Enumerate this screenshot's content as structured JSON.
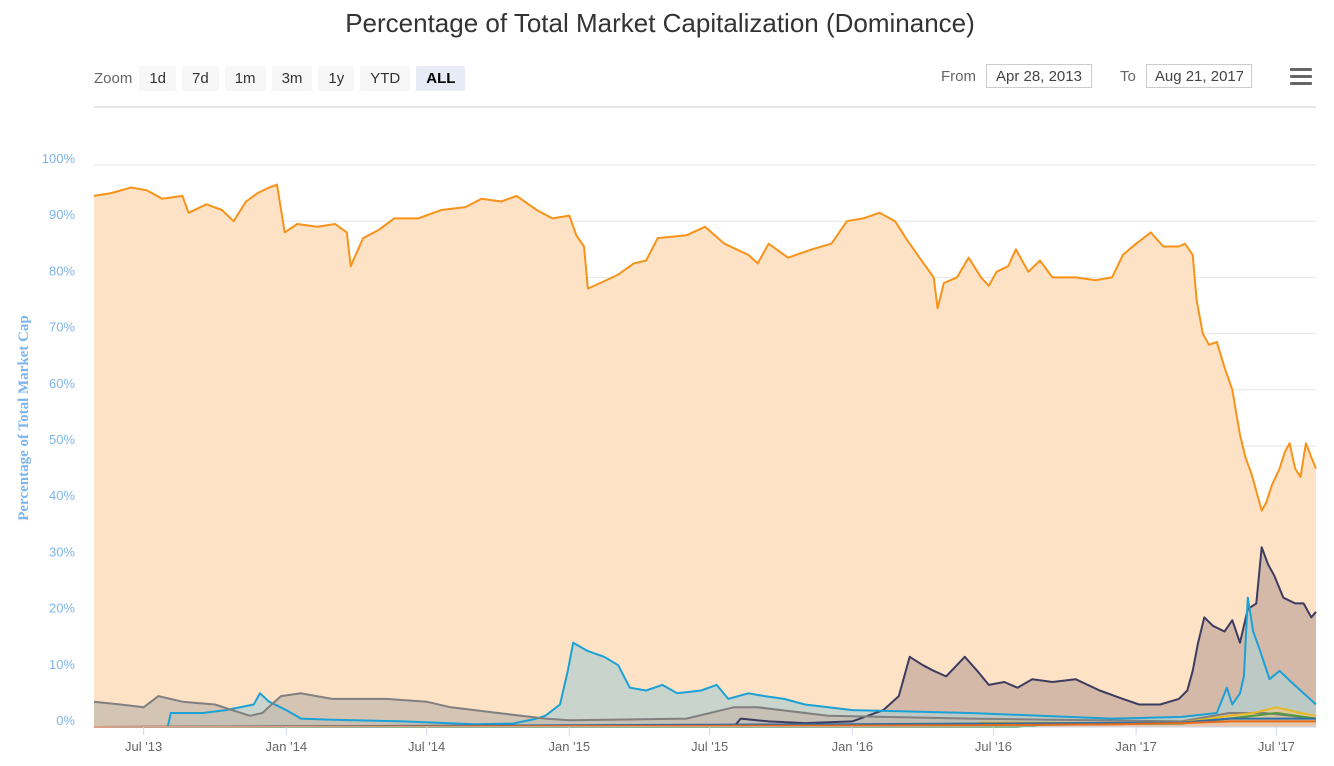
{
  "title": "Percentage of Total Market Capitalization (Dominance)",
  "zoom": {
    "label": "Zoom",
    "buttons": [
      "1d",
      "7d",
      "1m",
      "3m",
      "1y",
      "YTD",
      "ALL"
    ],
    "active": "ALL"
  },
  "range": {
    "from_label": "From",
    "from_value": "Apr 28, 2013",
    "to_label": "To",
    "to_value": "Aug 21, 2017"
  },
  "menu_icon": "hamburger-menu-icon",
  "chart_data": {
    "type": "area",
    "title": "Percentage of Total Market Capitalization (Dominance)",
    "ylabel": "Percentage of Total Market Cap",
    "xlabel": "",
    "ylim": [
      0,
      100
    ],
    "xlim": [
      "2013-04-28",
      "2017-08-21"
    ],
    "y_ticks": [
      "0%",
      "10%",
      "20%",
      "30%",
      "40%",
      "50%",
      "60%",
      "70%",
      "80%",
      "90%",
      "100%"
    ],
    "x_ticks": [
      {
        "label": "Jul '13",
        "date": "2013-07-01"
      },
      {
        "label": "Jan '14",
        "date": "2014-01-01"
      },
      {
        "label": "Jul '14",
        "date": "2014-07-01"
      },
      {
        "label": "Jan '15",
        "date": "2015-01-01"
      },
      {
        "label": "Jul '15",
        "date": "2015-07-01"
      },
      {
        "label": "Jan '16",
        "date": "2016-01-01"
      },
      {
        "label": "Jul '16",
        "date": "2016-07-01"
      },
      {
        "label": "Jan '17",
        "date": "2017-01-01"
      },
      {
        "label": "Jul '17",
        "date": "2017-07-01"
      }
    ],
    "grid": true,
    "series": [
      {
        "color": "#f7931a",
        "fill": "#fde2c6",
        "points": [
          [
            "2013-04-28",
            94.5
          ],
          [
            "2013-05-20",
            95
          ],
          [
            "2013-06-15",
            96
          ],
          [
            "2013-07-05",
            95.5
          ],
          [
            "2013-07-25",
            94
          ],
          [
            "2013-08-20",
            94.5
          ],
          [
            "2013-08-28",
            91.5
          ],
          [
            "2013-09-20",
            93
          ],
          [
            "2013-10-10",
            92
          ],
          [
            "2013-10-25",
            90
          ],
          [
            "2013-11-10",
            93.5
          ],
          [
            "2013-11-25",
            95
          ],
          [
            "2013-12-10",
            96
          ],
          [
            "2013-12-20",
            96.5
          ],
          [
            "2013-12-30",
            88
          ],
          [
            "2014-01-15",
            89.5
          ],
          [
            "2014-02-10",
            89
          ],
          [
            "2014-03-05",
            89.5
          ],
          [
            "2014-03-20",
            88
          ],
          [
            "2014-03-25",
            82
          ],
          [
            "2014-04-10",
            87
          ],
          [
            "2014-05-01",
            88.5
          ],
          [
            "2014-05-20",
            90.5
          ],
          [
            "2014-06-20",
            90.5
          ],
          [
            "2014-07-20",
            92
          ],
          [
            "2014-08-20",
            92.5
          ],
          [
            "2014-09-10",
            94
          ],
          [
            "2014-10-05",
            93.5
          ],
          [
            "2014-10-25",
            94.5
          ],
          [
            "2014-11-20",
            92
          ],
          [
            "2014-12-10",
            90.5
          ],
          [
            "2015-01-01",
            91
          ],
          [
            "2015-01-10",
            87.5
          ],
          [
            "2015-01-20",
            85.5
          ],
          [
            "2015-01-25",
            78
          ],
          [
            "2015-02-10",
            79
          ],
          [
            "2015-03-05",
            80.5
          ],
          [
            "2015-03-25",
            82.5
          ],
          [
            "2015-04-10",
            83
          ],
          [
            "2015-04-25",
            87
          ],
          [
            "2015-06-01",
            87.5
          ],
          [
            "2015-06-25",
            89
          ],
          [
            "2015-07-20",
            86
          ],
          [
            "2015-08-20",
            84
          ],
          [
            "2015-09-01",
            82.5
          ],
          [
            "2015-09-15",
            86
          ],
          [
            "2015-10-10",
            83.5
          ],
          [
            "2015-11-10",
            85
          ],
          [
            "2015-12-05",
            86
          ],
          [
            "2015-12-25",
            90
          ],
          [
            "2016-01-15",
            90.5
          ],
          [
            "2016-02-05",
            91.5
          ],
          [
            "2016-02-25",
            90
          ],
          [
            "2016-03-10",
            87
          ],
          [
            "2016-03-25",
            84
          ],
          [
            "2016-04-15",
            80
          ],
          [
            "2016-04-20",
            74.5
          ],
          [
            "2016-04-28",
            79
          ],
          [
            "2016-05-15",
            80
          ],
          [
            "2016-05-30",
            83.5
          ],
          [
            "2016-06-15",
            80
          ],
          [
            "2016-06-25",
            78.5
          ],
          [
            "2016-07-05",
            81
          ],
          [
            "2016-07-20",
            82
          ],
          [
            "2016-07-30",
            85
          ],
          [
            "2016-08-15",
            81
          ],
          [
            "2016-08-30",
            83
          ],
          [
            "2016-09-15",
            80
          ],
          [
            "2016-10-15",
            80
          ],
          [
            "2016-11-10",
            79.5
          ],
          [
            "2016-12-01",
            80
          ],
          [
            "2016-12-15",
            84
          ],
          [
            "2017-01-01",
            86
          ],
          [
            "2017-01-20",
            88
          ],
          [
            "2017-02-05",
            85.5
          ],
          [
            "2017-02-25",
            85.5
          ],
          [
            "2017-03-05",
            86
          ],
          [
            "2017-03-15",
            84
          ],
          [
            "2017-03-20",
            76
          ],
          [
            "2017-03-28",
            70
          ],
          [
            "2017-04-05",
            68
          ],
          [
            "2017-04-15",
            68.5
          ],
          [
            "2017-04-25",
            64
          ],
          [
            "2017-05-05",
            60
          ],
          [
            "2017-05-10",
            56
          ],
          [
            "2017-05-15",
            52
          ],
          [
            "2017-05-22",
            48
          ],
          [
            "2017-05-30",
            45
          ],
          [
            "2017-06-05",
            42
          ],
          [
            "2017-06-12",
            38.5
          ],
          [
            "2017-06-18",
            40
          ],
          [
            "2017-06-25",
            43
          ],
          [
            "2017-07-05",
            46
          ],
          [
            "2017-07-12",
            49
          ],
          [
            "2017-07-18",
            50.5
          ],
          [
            "2017-07-25",
            46
          ],
          [
            "2017-08-01",
            44.5
          ],
          [
            "2017-08-08",
            50.5
          ],
          [
            "2017-08-15",
            48
          ],
          [
            "2017-08-21",
            46
          ]
        ]
      },
      {
        "color": "#3c3c61",
        "fill": "#c5ab9e",
        "points": [
          [
            "2013-04-28",
            0
          ],
          [
            "2015-08-01",
            0
          ],
          [
            "2015-08-10",
            1.5
          ],
          [
            "2015-09-15",
            1
          ],
          [
            "2015-11-01",
            0.7
          ],
          [
            "2016-01-01",
            1
          ],
          [
            "2016-02-10",
            3
          ],
          [
            "2016-03-01",
            5.5
          ],
          [
            "2016-03-15",
            12.5
          ],
          [
            "2016-04-01",
            11
          ],
          [
            "2016-04-15",
            10
          ],
          [
            "2016-05-01",
            9
          ],
          [
            "2016-05-25",
            12.5
          ],
          [
            "2016-06-10",
            10
          ],
          [
            "2016-06-25",
            7.5
          ],
          [
            "2016-07-15",
            8
          ],
          [
            "2016-08-01",
            7
          ],
          [
            "2016-08-20",
            8.5
          ],
          [
            "2016-09-15",
            8
          ],
          [
            "2016-10-15",
            8.5
          ],
          [
            "2016-11-15",
            6.5
          ],
          [
            "2016-12-15",
            5
          ],
          [
            "2017-01-05",
            4
          ],
          [
            "2017-02-01",
            4
          ],
          [
            "2017-02-25",
            5
          ],
          [
            "2017-03-08",
            6.5
          ],
          [
            "2017-03-15",
            10
          ],
          [
            "2017-03-22",
            15
          ],
          [
            "2017-03-30",
            19.5
          ],
          [
            "2017-04-10",
            18
          ],
          [
            "2017-04-25",
            17
          ],
          [
            "2017-05-05",
            19
          ],
          [
            "2017-05-15",
            15
          ],
          [
            "2017-05-25",
            21
          ],
          [
            "2017-06-05",
            22
          ],
          [
            "2017-06-12",
            32
          ],
          [
            "2017-06-20",
            29
          ],
          [
            "2017-06-28",
            27
          ],
          [
            "2017-07-10",
            23
          ],
          [
            "2017-07-25",
            22
          ],
          [
            "2017-08-05",
            22
          ],
          [
            "2017-08-15",
            19.5
          ],
          [
            "2017-08-21",
            20.5
          ]
        ]
      },
      {
        "color": "#1ba1d6",
        "fill": "#b6cfcd",
        "points": [
          [
            "2013-04-28",
            0
          ],
          [
            "2013-08-01",
            0
          ],
          [
            "2013-08-05",
            2.5
          ],
          [
            "2013-09-15",
            2.5
          ],
          [
            "2013-10-15",
            3
          ],
          [
            "2013-11-20",
            4
          ],
          [
            "2013-11-28",
            6
          ],
          [
            "2013-12-10",
            4.5
          ],
          [
            "2014-01-01",
            3
          ],
          [
            "2014-01-20",
            1.5
          ],
          [
            "2014-03-01",
            1.3
          ],
          [
            "2014-06-01",
            1
          ],
          [
            "2014-09-01",
            0.5
          ],
          [
            "2014-10-20",
            0.6
          ],
          [
            "2014-11-20",
            1.5
          ],
          [
            "2014-12-01",
            2
          ],
          [
            "2014-12-20",
            4
          ],
          [
            "2014-12-30",
            10
          ],
          [
            "2015-01-06",
            15
          ],
          [
            "2015-01-25",
            13.5
          ],
          [
            "2015-02-15",
            12.5
          ],
          [
            "2015-03-05",
            11
          ],
          [
            "2015-03-20",
            7
          ],
          [
            "2015-04-10",
            6.5
          ],
          [
            "2015-05-01",
            7.5
          ],
          [
            "2015-05-20",
            6
          ],
          [
            "2015-06-20",
            6.5
          ],
          [
            "2015-07-10",
            7.5
          ],
          [
            "2015-07-25",
            5
          ],
          [
            "2015-08-20",
            6
          ],
          [
            "2015-09-10",
            5.5
          ],
          [
            "2015-10-05",
            5
          ],
          [
            "2015-11-01",
            4
          ],
          [
            "2015-12-01",
            3.5
          ],
          [
            "2016-01-01",
            3
          ],
          [
            "2016-06-01",
            2.5
          ],
          [
            "2016-12-01",
            1.5
          ],
          [
            "2017-03-01",
            1.8
          ],
          [
            "2017-04-15",
            2.5
          ],
          [
            "2017-04-28",
            7
          ],
          [
            "2017-05-05",
            4
          ],
          [
            "2017-05-15",
            6
          ],
          [
            "2017-05-20",
            9
          ],
          [
            "2017-05-25",
            23
          ],
          [
            "2017-06-01",
            17
          ],
          [
            "2017-06-10",
            13.5
          ],
          [
            "2017-06-22",
            8.5
          ],
          [
            "2017-07-05",
            10
          ],
          [
            "2017-07-20",
            8
          ],
          [
            "2017-08-05",
            6
          ],
          [
            "2017-08-21",
            4
          ]
        ]
      },
      {
        "color": "#808080",
        "fill": "#c5b9ad",
        "points": [
          [
            "2013-04-28",
            4.5
          ],
          [
            "2013-06-01",
            4
          ],
          [
            "2013-07-01",
            3.5
          ],
          [
            "2013-07-20",
            5.5
          ],
          [
            "2013-08-20",
            4.5
          ],
          [
            "2013-10-01",
            4
          ],
          [
            "2013-11-15",
            2
          ],
          [
            "2013-12-01",
            2.5
          ],
          [
            "2013-12-25",
            5.5
          ],
          [
            "2014-01-20",
            6
          ],
          [
            "2014-03-01",
            5
          ],
          [
            "2014-05-10",
            5
          ],
          [
            "2014-07-01",
            4.5
          ],
          [
            "2014-08-01",
            3.5
          ],
          [
            "2014-09-01",
            3
          ],
          [
            "2014-10-01",
            2.5
          ],
          [
            "2014-12-01",
            1.5
          ],
          [
            "2015-01-01",
            1.2
          ],
          [
            "2015-06-01",
            1.5
          ],
          [
            "2015-08-01",
            3.5
          ],
          [
            "2015-09-01",
            3.5
          ],
          [
            "2015-12-01",
            2
          ],
          [
            "2016-06-01",
            1.5
          ],
          [
            "2017-03-01",
            1
          ],
          [
            "2017-05-01",
            2.5
          ],
          [
            "2017-06-15",
            2.5
          ],
          [
            "2017-08-21",
            1.5
          ]
        ]
      },
      {
        "color": "#e8b923",
        "fill": "#e9c797",
        "points": [
          [
            "2013-04-28",
            0
          ],
          [
            "2016-06-01",
            0
          ],
          [
            "2016-06-15",
            0.8
          ],
          [
            "2016-12-01",
            0.7
          ],
          [
            "2017-03-01",
            0.8
          ],
          [
            "2017-05-01",
            2
          ],
          [
            "2017-06-01",
            2.5
          ],
          [
            "2017-07-01",
            3.5
          ],
          [
            "2017-08-01",
            2.5
          ],
          [
            "2017-08-21",
            2
          ]
        ]
      },
      {
        "color": "#4f9a3c",
        "fill": "#d6c6a0",
        "points": [
          [
            "2013-04-28",
            0
          ],
          [
            "2016-08-01",
            0
          ],
          [
            "2016-09-01",
            0.4
          ],
          [
            "2017-03-01",
            0.6
          ],
          [
            "2017-05-01",
            1.5
          ],
          [
            "2017-07-01",
            2.5
          ],
          [
            "2017-08-21",
            1.5
          ]
        ]
      },
      {
        "color": "#2e6fa6",
        "fill": "#cdbfae",
        "points": [
          [
            "2013-04-28",
            0
          ],
          [
            "2014-06-01",
            0.2
          ],
          [
            "2016-01-01",
            0.5
          ],
          [
            "2017-03-01",
            0.8
          ],
          [
            "2017-05-01",
            1.5
          ],
          [
            "2017-08-21",
            1.5
          ]
        ]
      },
      {
        "color": "#e46a1d",
        "fill": "#f0c7a8",
        "points": [
          [
            "2013-04-28",
            0
          ],
          [
            "2016-06-01",
            0.3
          ],
          [
            "2016-12-01",
            0.5
          ],
          [
            "2017-03-01",
            0.7
          ],
          [
            "2017-05-01",
            1
          ],
          [
            "2017-08-21",
            1
          ]
        ]
      }
    ]
  }
}
